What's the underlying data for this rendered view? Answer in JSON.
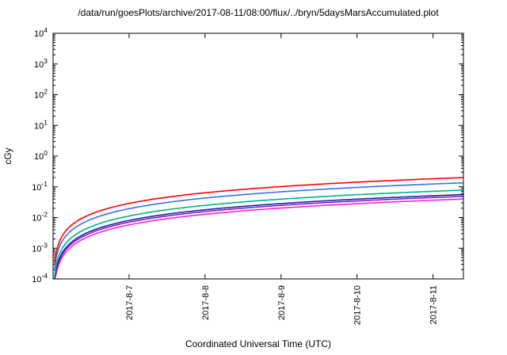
{
  "page": {
    "background": "#ffffff"
  },
  "chart_data": {
    "type": "line",
    "title": "/data/run/goesPlots/archive/2017-08-11/08:00/flux/../bryn/5daysMarsAccumulated.plot",
    "xlabel": "Coordinated Universal Time (UTC)",
    "ylabel": "cGy",
    "y_scale": "log",
    "ylim_exp": [
      -4,
      4
    ],
    "y_ticks_exp": [
      -4,
      -3,
      -2,
      -1,
      0,
      1,
      2,
      3,
      4
    ],
    "x_span_days": 5.4,
    "t_start": 0.02,
    "curve_exponent": 1.15,
    "grid": false,
    "legend": "none",
    "x_ticks": [
      {
        "label": "2017-8-7",
        "t": 1
      },
      {
        "label": "2017-8-8",
        "t": 2
      },
      {
        "label": "2017-8-9",
        "t": 3
      },
      {
        "label": "2017-8-10",
        "t": 4
      },
      {
        "label": "2017-8-11",
        "t": 5
      }
    ],
    "series": [
      {
        "name": "red",
        "color": "#ff0000",
        "end_value": 0.2,
        "values_at_ticks": [
          0.029,
          0.064,
          0.102,
          0.142,
          0.183
        ]
      },
      {
        "name": "blue",
        "color": "#3a6ff2",
        "end_value": 0.135,
        "values_at_ticks": [
          0.019,
          0.043,
          0.069,
          0.096,
          0.124
        ]
      },
      {
        "name": "teal",
        "color": "#00b382",
        "end_value": 0.078,
        "values_at_ticks": [
          0.011,
          0.025,
          0.04,
          0.055,
          0.071
        ]
      },
      {
        "name": "navy",
        "color": "#2222aa",
        "end_value": 0.056,
        "values_at_ticks": [
          0.008,
          0.018,
          0.028,
          0.04,
          0.051
        ]
      },
      {
        "name": "violet",
        "color": "#7722cc",
        "end_value": 0.049,
        "values_at_ticks": [
          0.007,
          0.016,
          0.025,
          0.035,
          0.045
        ]
      },
      {
        "name": "magenta",
        "color": "#ff22cc",
        "end_value": 0.04,
        "values_at_ticks": [
          0.006,
          0.013,
          0.02,
          0.028,
          0.037
        ]
      }
    ]
  }
}
